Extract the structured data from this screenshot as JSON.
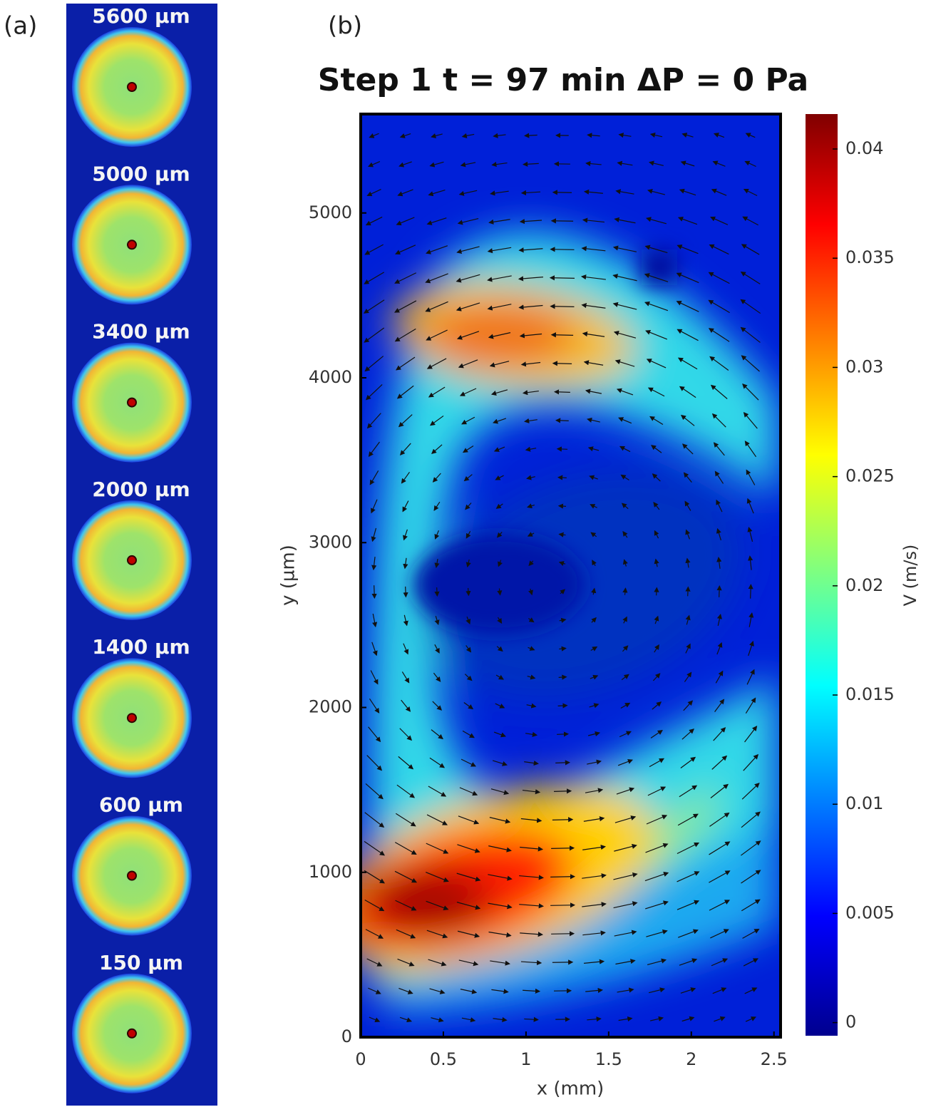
{
  "panel_a": {
    "label": "(a)",
    "slices": [
      "5600 µm",
      "5000 µm",
      "3400 µm",
      "2000 µm",
      "1400 µm",
      "600 µm",
      "150 µm"
    ]
  },
  "chart_data": {
    "type": "heatmap",
    "label": "(b)",
    "title": "Step 1 t = 97 min ΔP = 0 Pa",
    "xlabel": "x (mm)",
    "ylabel": "y (µm)",
    "xlim": [
      0,
      2.54
    ],
    "ylim": [
      0,
      5600
    ],
    "xticks": [
      0,
      0.5,
      1,
      1.5,
      2,
      2.5
    ],
    "yticks": [
      0,
      1000,
      2000,
      3000,
      4000,
      5000
    ],
    "colorbar": {
      "label": "V (m/s)",
      "colormap": "jet",
      "lim": [
        -0.0006,
        0.0416
      ],
      "ticks": [
        0,
        0.005,
        0.01,
        0.015,
        0.02,
        0.025,
        0.03,
        0.035,
        0.04
      ]
    }
  }
}
